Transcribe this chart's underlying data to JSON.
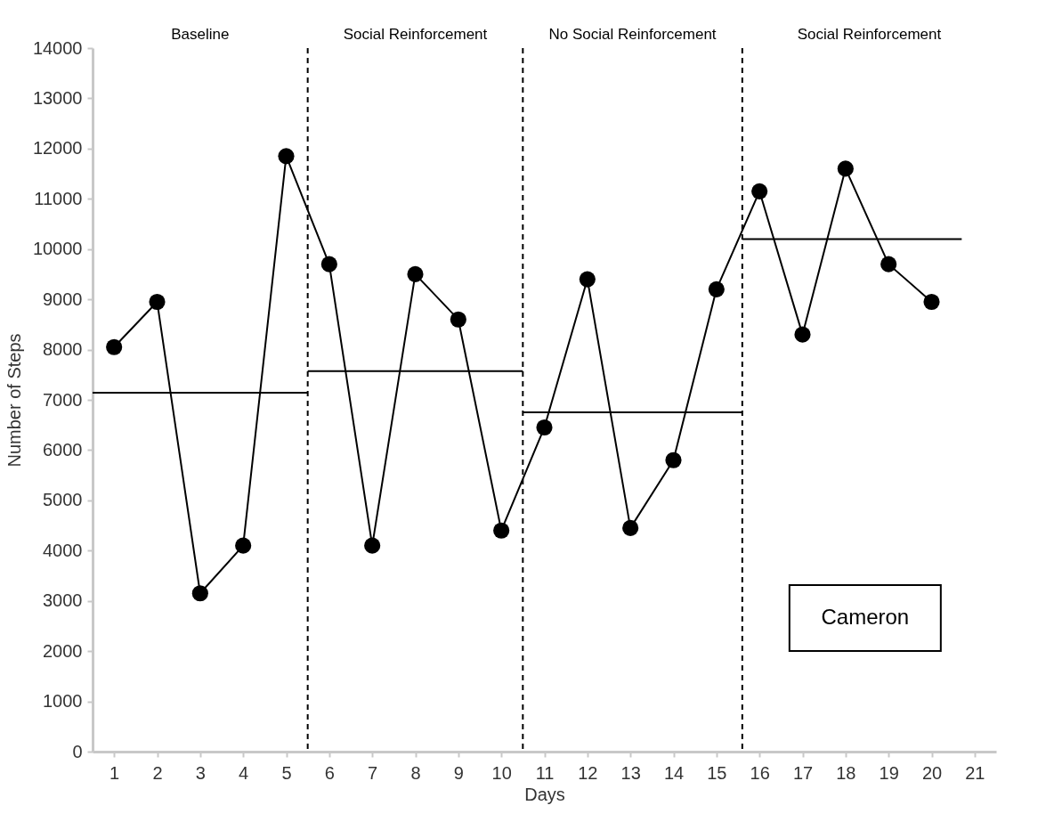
{
  "chart_data": {
    "type": "line",
    "xlabel": "Days",
    "ylabel": "Number of Steps",
    "xlim": [
      0.5,
      21.5
    ],
    "xticks": [
      1,
      2,
      3,
      4,
      5,
      6,
      7,
      8,
      9,
      10,
      11,
      12,
      13,
      14,
      15,
      16,
      17,
      18,
      19,
      20,
      21
    ],
    "ylim": [
      0,
      14000
    ],
    "yticks": [
      0,
      1000,
      2000,
      3000,
      4000,
      5000,
      6000,
      7000,
      8000,
      9000,
      10000,
      11000,
      12000,
      13000,
      14000
    ],
    "grid": false,
    "series": [
      {
        "marker": "circle",
        "color": "#000000",
        "x": [
          1,
          2,
          3,
          4,
          5,
          6,
          7,
          8,
          9,
          10,
          11,
          12,
          13,
          14,
          15,
          16,
          17,
          18,
          19,
          20
        ],
        "values": [
          8050,
          8950,
          3150,
          4100,
          11850,
          9700,
          4100,
          9500,
          8600,
          4400,
          6450,
          9400,
          4450,
          5800,
          9200,
          11150,
          8300,
          11600,
          9700,
          8950
        ]
      },
      {
        "marker": "none",
        "color": "#000000",
        "x": [
          0.5,
          5.5
        ],
        "values": [
          7140,
          7140
        ]
      },
      {
        "marker": "none",
        "color": "#000000",
        "x": [
          5.5,
          10.5
        ],
        "values": [
          7570,
          7570
        ]
      },
      {
        "marker": "none",
        "color": "#000000",
        "x": [
          10.5,
          15.6
        ],
        "values": [
          6750,
          6750
        ]
      },
      {
        "marker": "none",
        "color": "#000000",
        "x": [
          15.6,
          20.7
        ],
        "values": [
          10200,
          10200
        ]
      }
    ],
    "ref_lines": [
      {
        "axis": "x",
        "value": 5.5,
        "line_style": "dashed",
        "color": "#000000"
      },
      {
        "axis": "x",
        "value": 10.5,
        "line_style": "dashed",
        "color": "#000000"
      },
      {
        "axis": "x",
        "value": 15.6,
        "line_style": "dashed",
        "color": "#000000"
      }
    ],
    "annotations": [
      "Baseline",
      "Social Reinforcement",
      "No Social Reinforcement",
      "Social Reinforcement",
      "Cameron"
    ]
  }
}
